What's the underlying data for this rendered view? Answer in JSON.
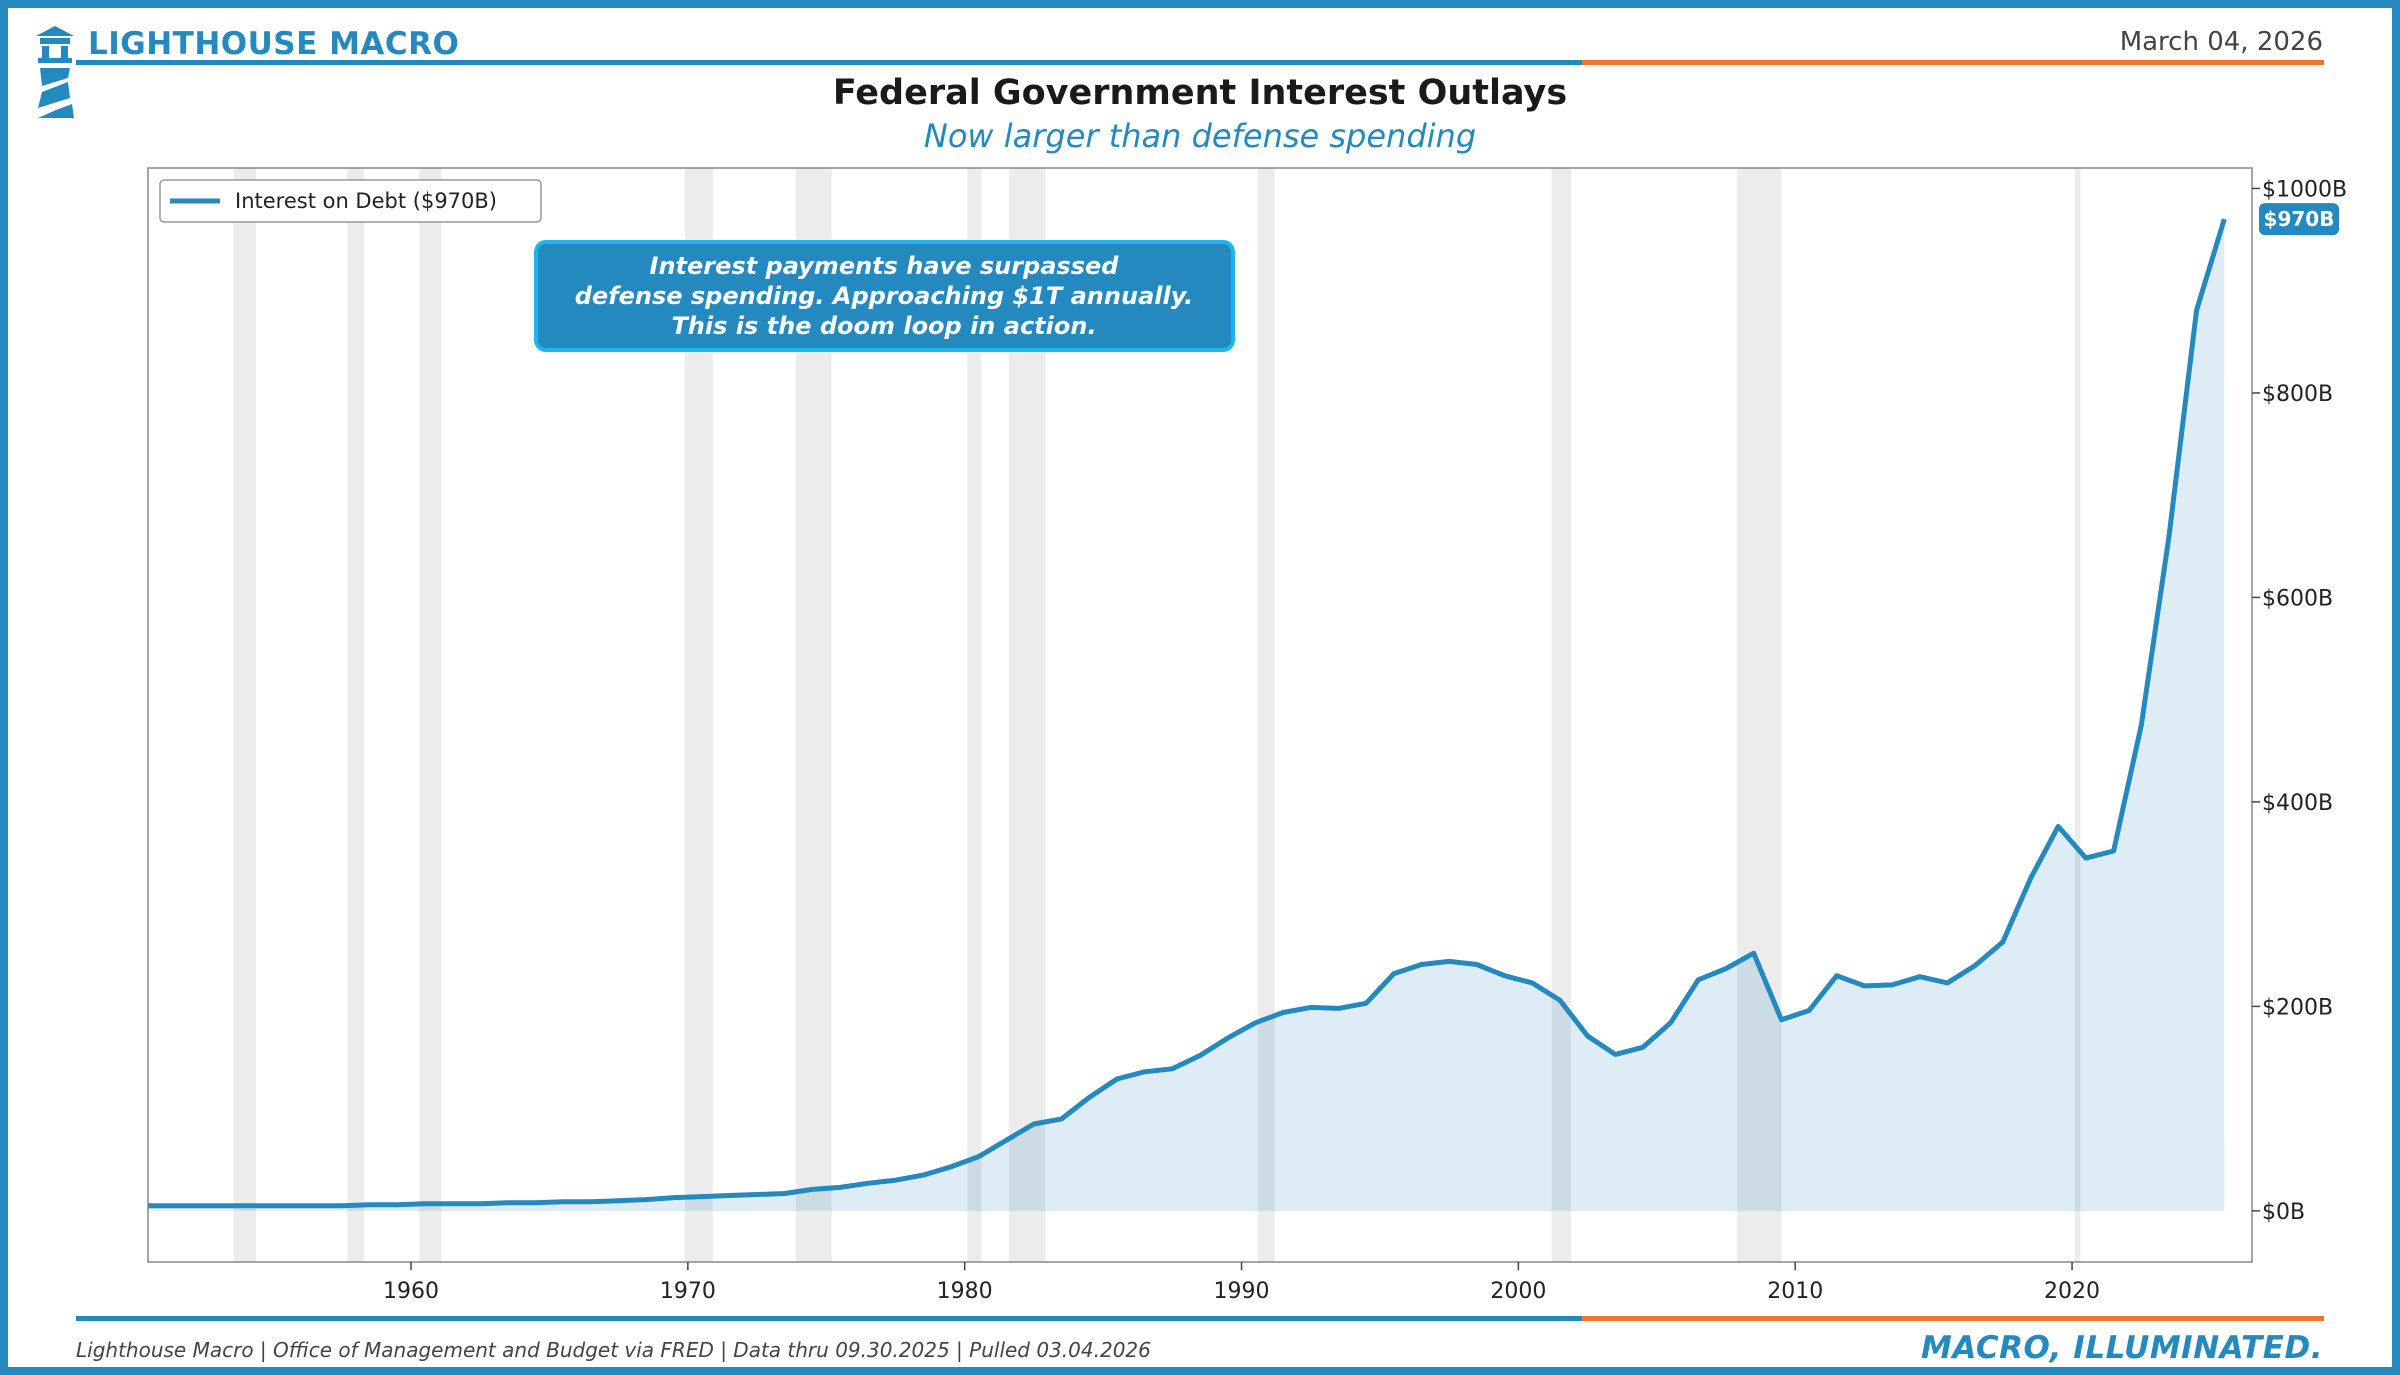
{
  "header": {
    "brand": "LIGHTHOUSE MACRO",
    "date": "March 04, 2026",
    "title": "Federal Government Interest Outlays",
    "subtitle": "Now larger than defense spending"
  },
  "footer": {
    "source": "Lighthouse Macro | Office of Management and Budget via FRED | Data thru 09.30.2025 | Pulled 03.04.2026",
    "tagline": "MACRO, ILLUMINATED."
  },
  "colors": {
    "accent": "#2389be",
    "rule_orange": "#f0732e",
    "fill": "#deecf4",
    "recession": "#e6e6e6"
  },
  "chart_data": {
    "type": "area",
    "title": "Federal Government Interest Outlays",
    "xlabel": "",
    "ylabel": "",
    "xlim": [
      1950.5,
      2026.5
    ],
    "ylim": [
      -50,
      1020
    ],
    "xticks": [
      1960,
      1970,
      1980,
      1990,
      2000,
      2010,
      2020
    ],
    "xtick_labels": [
      "1960",
      "1970",
      "1980",
      "1990",
      "2000",
      "2010",
      "2020"
    ],
    "yticks": [
      0,
      200,
      400,
      600,
      800,
      1000
    ],
    "ytick_labels": [
      "$0B",
      "$200B",
      "$400B",
      "$600B",
      "$800B",
      "$1000B"
    ],
    "legend": {
      "label": "Interest on Debt ($970B)",
      "position": "top-left"
    },
    "last_value_badge": "$970B",
    "annotation": {
      "lines": [
        "Interest payments have surpassed",
        "defense spending. Approaching $1T annually.",
        "This is the doom loop in action."
      ]
    },
    "recessions": [
      [
        1953.6,
        1954.4
      ],
      [
        1957.7,
        1958.3
      ],
      [
        1960.3,
        1961.1
      ],
      [
        1969.9,
        1970.9
      ],
      [
        1973.9,
        1975.2
      ],
      [
        1980.1,
        1980.6
      ],
      [
        1981.6,
        1982.9
      ],
      [
        1990.6,
        1991.2
      ],
      [
        2001.2,
        2001.9
      ],
      [
        2007.9,
        2009.5
      ],
      [
        2020.1,
        2020.3
      ]
    ],
    "series": [
      {
        "name": "Interest on Debt",
        "x": [
          1950.5,
          1951.5,
          1952.5,
          1953.5,
          1954.5,
          1955.5,
          1956.5,
          1957.5,
          1958.5,
          1959.5,
          1960.5,
          1961.5,
          1962.5,
          1963.5,
          1964.5,
          1965.5,
          1966.5,
          1967.5,
          1968.5,
          1969.5,
          1970.5,
          1971.5,
          1972.5,
          1973.5,
          1974.5,
          1975.5,
          1976.5,
          1977.5,
          1978.5,
          1979.5,
          1980.5,
          1981.5,
          1982.5,
          1983.5,
          1984.5,
          1985.5,
          1986.5,
          1987.5,
          1988.5,
          1989.5,
          1990.5,
          1991.5,
          1992.5,
          1993.5,
          1994.5,
          1995.5,
          1996.5,
          1997.5,
          1998.5,
          1999.5,
          2000.5,
          2001.5,
          2002.5,
          2003.5,
          2004.5,
          2005.5,
          2006.5,
          2007.5,
          2008.5,
          2009.5,
          2010.5,
          2011.5,
          2012.5,
          2013.5,
          2014.5,
          2015.5,
          2016.5,
          2017.5,
          2018.5,
          2019.5,
          2020.5,
          2021.5,
          2022.5,
          2023.5,
          2024.5,
          2025.5
        ],
        "values": [
          5,
          5,
          5,
          5,
          5,
          5,
          5,
          5,
          6,
          6,
          7,
          7,
          7,
          8,
          8,
          9,
          9,
          10,
          11,
          13,
          14,
          15,
          16,
          17,
          21,
          23,
          27,
          30,
          35,
          43,
          53,
          69,
          85,
          90,
          111,
          129,
          136,
          139,
          152,
          169,
          184,
          194,
          199,
          198,
          203,
          232,
          241,
          244,
          241,
          230,
          223,
          206,
          171,
          153,
          160,
          184,
          226,
          237,
          252,
          187,
          196,
          230,
          220,
          221,
          229,
          223,
          240,
          263,
          325,
          376,
          345,
          352,
          475,
          659,
          881,
          970
        ]
      }
    ]
  }
}
